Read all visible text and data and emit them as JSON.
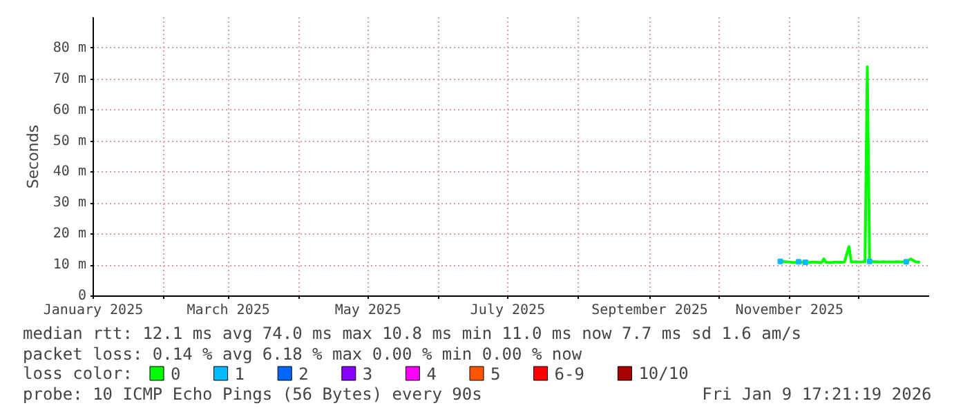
{
  "chart_data": {
    "type": "line",
    "ylabel": "Seconds",
    "legend_title": "loss color:",
    "legend": "bottom left",
    "grid": true,
    "line_style": "solid",
    "xlim": [
      "2025-01-01",
      "2026-01-01"
    ],
    "xticks": [
      {
        "value": "2025-01-01",
        "label": "January 2025"
      },
      {
        "value": "2025-02-01",
        "label": null
      },
      {
        "value": "2025-03-01",
        "label": "March 2025"
      },
      {
        "value": "2025-04-01",
        "label": null
      },
      {
        "value": "2025-05-01",
        "label": "May 2025"
      },
      {
        "value": "2025-06-01",
        "label": null
      },
      {
        "value": "2025-07-01",
        "label": "July 2025"
      },
      {
        "value": "2025-08-01",
        "label": null
      },
      {
        "value": "2025-09-01",
        "label": "September 2025"
      },
      {
        "value": "2025-10-01",
        "label": null
      },
      {
        "value": "2025-11-01",
        "label": "November 2025"
      },
      {
        "value": "2025-12-01",
        "label": null
      }
    ],
    "ylim": [
      0,
      90
    ],
    "yticks": [
      0,
      {
        "value": 10,
        "label": "10 m"
      },
      {
        "value": 20,
        "label": "20 m"
      },
      {
        "value": 30,
        "label": "30 m"
      },
      {
        "value": 40,
        "label": "40 m"
      },
      {
        "value": 50,
        "label": "50 m"
      },
      {
        "value": 60,
        "label": "60 m"
      },
      {
        "value": 70,
        "label": "70 m"
      },
      {
        "value": 80,
        "label": "80 m"
      }
    ],
    "series": [
      {
        "name": "0",
        "color": "#00ff00",
        "x": [
          "2025-10-28",
          "2025-10-30",
          "2025-11-01",
          "2025-11-03",
          "2025-11-05",
          "2025-11-07",
          "2025-11-09",
          "2025-11-11",
          "2025-11-13",
          "2025-11-15",
          "2025-11-16",
          "2025-11-17",
          "2025-11-19",
          "2025-11-21",
          "2025-11-23",
          "2025-11-25",
          "2025-11-27",
          "2025-11-28",
          "2025-11-30",
          "2025-12-02",
          "2025-12-04",
          "2025-12-05",
          "2025-12-06",
          "2025-12-08",
          "2025-12-10",
          "2025-12-12",
          "2025-12-14",
          "2025-12-16",
          "2025-12-18",
          "2025-12-20",
          "2025-12-22",
          "2025-12-24",
          "2025-12-26",
          "2025-12-28"
        ],
        "values": [
          11.2,
          11.1,
          11.0,
          10.8,
          11.1,
          10.9,
          10.8,
          11.0,
          10.9,
          10.8,
          12.0,
          10.9,
          10.8,
          11.0,
          10.9,
          11.0,
          16.0,
          11.0,
          11.1,
          11.0,
          11.1,
          74.0,
          11.2,
          11.1,
          11.0,
          11.1,
          11.0,
          11.0,
          11.1,
          11.0,
          11.1,
          12.0,
          11.1,
          10.9
        ]
      },
      {
        "name": "1",
        "color": "#00bbff",
        "type": "scatter",
        "marker": "square",
        "x": [
          "2025-10-28",
          "2025-11-05",
          "2025-11-08",
          "2025-12-06",
          "2025-12-22"
        ],
        "values": [
          11.2,
          11.1,
          10.9,
          11.2,
          11.1
        ]
      },
      {
        "name": "2",
        "color": "#0066ff",
        "type": "scatter",
        "marker": "square"
      },
      {
        "name": "3",
        "color": "#8800ff",
        "type": "scatter",
        "marker": "square"
      },
      {
        "name": "4",
        "color": "#ff00ff",
        "type": "scatter",
        "marker": "square"
      },
      {
        "name": "5",
        "color": "#ff5500",
        "type": "scatter",
        "marker": "square"
      },
      {
        "name": "6-9",
        "color": "#ff0000",
        "type": "scatter",
        "marker": "square"
      },
      {
        "name": "10/10",
        "color": "#aa0000",
        "type": "scatter",
        "marker": "square"
      }
    ],
    "annotations": [
      "median rtt:  12.1 ms avg  74.0 ms max  10.8 ms min  11.0 ms now  7.7 ms sd  1.6   am/s",
      "packet loss: 0.14 % avg  6.18 % max  0.00 % min  0.00 % now",
      "probe:       10 ICMP Echo Pings (56 Bytes) every 90s",
      "Fri Jan  9 17:21:19 2026"
    ]
  }
}
